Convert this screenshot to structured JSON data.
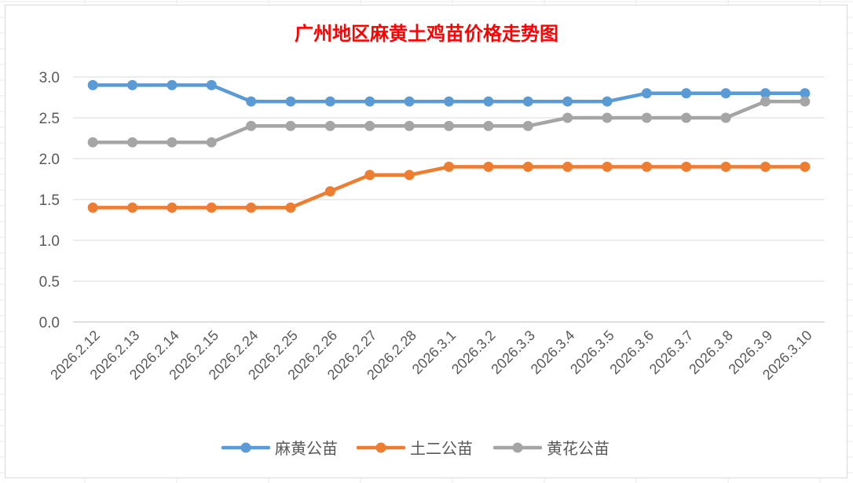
{
  "chart_data": {
    "type": "line",
    "title": "广州地区麻黄土鸡苗价格走势图",
    "categories": [
      "2026.2.12",
      "2026.2.13",
      "2026.2.14",
      "2026.2.15",
      "2026.2.24",
      "2026.2.25",
      "2026.2.26",
      "2026.2.27",
      "2026.2.28",
      "2026.3.1",
      "2026.3.2",
      "2026.3.3",
      "2026.3.4",
      "2026.3.5",
      "2026.3.6",
      "2026.3.7",
      "2026.3.8",
      "2026.3.9",
      "2026.3.10"
    ],
    "series": [
      {
        "name": "麻黄公苗",
        "color": "#5b9bd5",
        "values": [
          2.9,
          2.9,
          2.9,
          2.9,
          2.7,
          2.7,
          2.7,
          2.7,
          2.7,
          2.7,
          2.7,
          2.7,
          2.7,
          2.7,
          2.8,
          2.8,
          2.8,
          2.8,
          2.8
        ]
      },
      {
        "name": "土二公苗",
        "color": "#ed7d31",
        "values": [
          1.4,
          1.4,
          1.4,
          1.4,
          1.4,
          1.4,
          1.6,
          1.8,
          1.8,
          1.9,
          1.9,
          1.9,
          1.9,
          1.9,
          1.9,
          1.9,
          1.9,
          1.9,
          1.9
        ]
      },
      {
        "name": "黄花公苗",
        "color": "#a5a5a5",
        "values": [
          2.2,
          2.2,
          2.2,
          2.2,
          2.4,
          2.4,
          2.4,
          2.4,
          2.4,
          2.4,
          2.4,
          2.4,
          2.5,
          2.5,
          2.5,
          2.5,
          2.5,
          2.7,
          2.7
        ]
      }
    ],
    "yticks": [
      "0.0",
      "0.5",
      "1.0",
      "1.5",
      "2.0",
      "2.5",
      "3.0"
    ],
    "ylim": [
      0,
      3.0
    ],
    "grid": true,
    "legend": "bottom",
    "title_color": "#ff0000",
    "xlabel": "",
    "ylabel": ""
  }
}
